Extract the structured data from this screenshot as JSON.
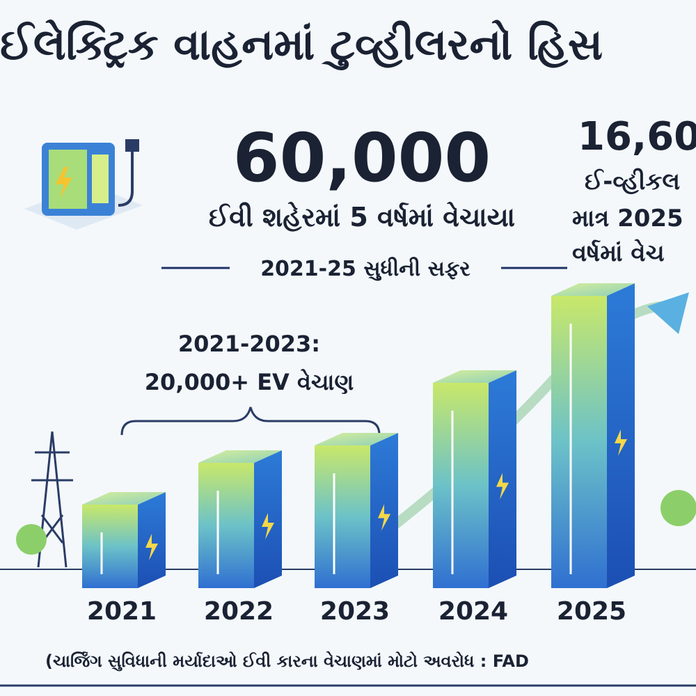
{
  "header": {
    "title": "ઈલેક્ટ્રિક વાહનમાં ટુવ્હીલરનો હિસ"
  },
  "headline": {
    "number": "60,000",
    "caption": "ઈવી શહેરમાં 5 વર્ષમાં વેચાયા",
    "journey": "2021-25 સુધીની સફર"
  },
  "side_note": {
    "number": "16,60",
    "lines": [
      "ઈ-વ્હીકલ",
      "માત્ર 2025",
      "વર્ષમાં વેચ"
    ]
  },
  "bracket_note": {
    "lines": [
      "2021-2023:",
      "20,000+ EV વેચાણ"
    ]
  },
  "years": [
    "2021",
    "2022",
    "2023",
    "2024",
    "2025"
  ],
  "footer": "(ચાર્જિંગ સુવિધાની મર્યાદાઓ ઈવી કારના વેચાણમાં મોટો અવરોધ : FAD"
}
